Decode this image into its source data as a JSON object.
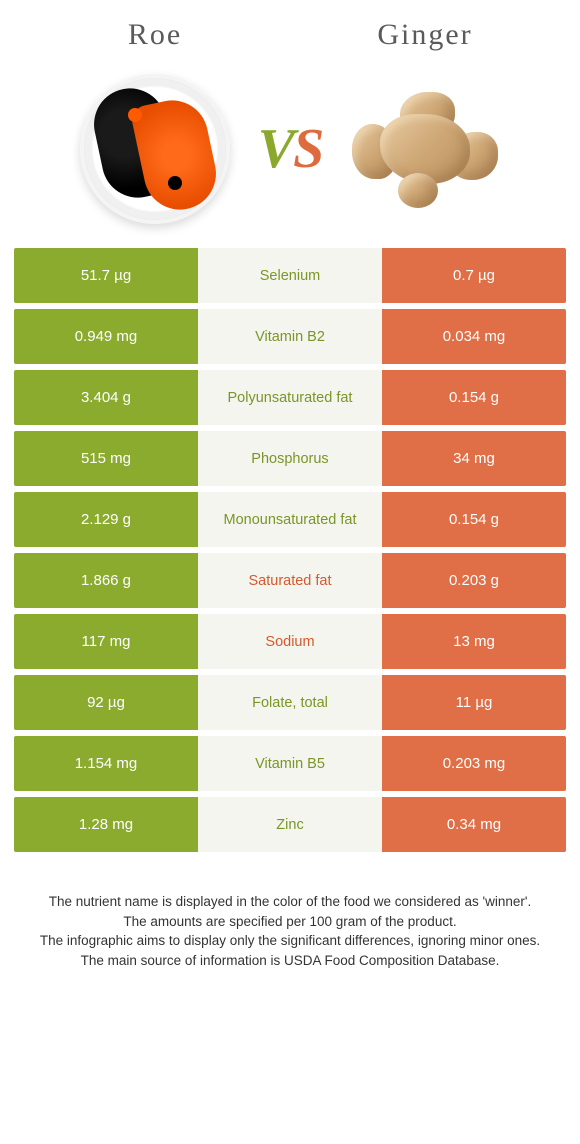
{
  "header": {
    "left_title": "Roe",
    "right_title": "Ginger",
    "vs_v": "V",
    "vs_s": "S"
  },
  "colors": {
    "left_bg": "#8bab2e",
    "right_bg": "#e06e46",
    "mid_bg": "#f5f5f0",
    "mid_left_winner": "#7a9626",
    "mid_right_winner": "#d35a2e",
    "page_bg": "#ffffff"
  },
  "rows": [
    {
      "left": "51.7 µg",
      "label": "Selenium",
      "right": "0.7 µg",
      "winner": "left"
    },
    {
      "left": "0.949 mg",
      "label": "Vitamin B2",
      "right": "0.034 mg",
      "winner": "left"
    },
    {
      "left": "3.404 g",
      "label": "Polyunsaturated fat",
      "right": "0.154 g",
      "winner": "left"
    },
    {
      "left": "515 mg",
      "label": "Phosphorus",
      "right": "34 mg",
      "winner": "left"
    },
    {
      "left": "2.129 g",
      "label": "Monounsaturated fat",
      "right": "0.154 g",
      "winner": "left"
    },
    {
      "left": "1.866 g",
      "label": "Saturated fat",
      "right": "0.203 g",
      "winner": "right"
    },
    {
      "left": "117 mg",
      "label": "Sodium",
      "right": "13 mg",
      "winner": "right"
    },
    {
      "left": "92 µg",
      "label": "Folate, total",
      "right": "11 µg",
      "winner": "left"
    },
    {
      "left": "1.154 mg",
      "label": "Vitamin B5",
      "right": "0.203 mg",
      "winner": "left"
    },
    {
      "left": "1.28 mg",
      "label": "Zinc",
      "right": "0.34 mg",
      "winner": "left"
    }
  ],
  "footer": {
    "line1": "The nutrient name is displayed in the color of the food we considered as 'winner'.",
    "line2": "The amounts are specified per 100 gram of the product.",
    "line3": "The infographic aims to display only the significant differences, ignoring minor ones.",
    "line4": "The main source of information is USDA Food Composition Database."
  }
}
